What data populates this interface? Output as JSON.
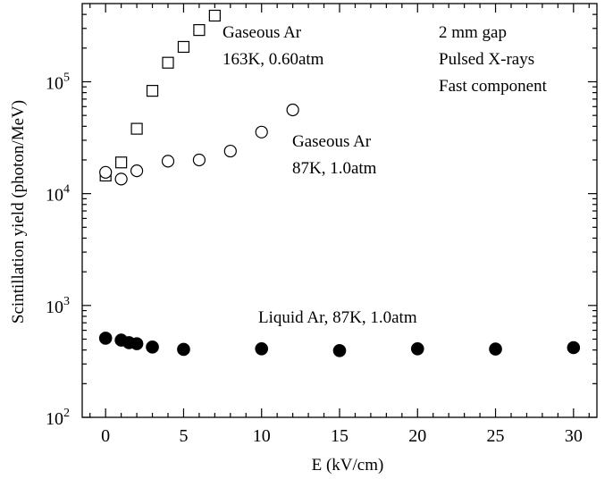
{
  "chart_data": {
    "type": "scatter",
    "xlabel": "E (kV/cm)",
    "ylabel": "Scintillation yield (photon/MeV)",
    "xlim": [
      -1.5,
      31.5
    ],
    "ylim": [
      100,
      500000
    ],
    "yscale": "log",
    "grid": false,
    "x_ticks": [
      0,
      5,
      10,
      15,
      20,
      25,
      30
    ],
    "x_tick_labels": [
      "0",
      "5",
      "10",
      "15",
      "20",
      "25",
      "30"
    ],
    "y_ticks": [
      100,
      1000,
      10000,
      100000
    ],
    "y_tick_labels": [
      {
        "base": "10",
        "exp": "2"
      },
      {
        "base": "10",
        "exp": "3"
      },
      {
        "base": "10",
        "exp": "4"
      },
      {
        "base": "10",
        "exp": "5"
      }
    ],
    "series": [
      {
        "marker": "open-square",
        "color": "#000000",
        "x": [
          0,
          1,
          2,
          3,
          4,
          5,
          6,
          7
        ],
        "y": [
          14500,
          19000,
          38000,
          83000,
          148000,
          205000,
          290000,
          390000
        ]
      },
      {
        "marker": "open-circle",
        "color": "#000000",
        "x": [
          0,
          1,
          2,
          4,
          6,
          8,
          10,
          12
        ],
        "y": [
          15500,
          13500,
          16000,
          19500,
          20000,
          24000,
          35500,
          56000
        ]
      },
      {
        "marker": "filled-circle",
        "color": "#000000",
        "x": [
          0,
          1,
          1.5,
          2,
          3,
          5,
          10,
          15,
          20,
          25,
          30
        ],
        "y": [
          510,
          490,
          465,
          455,
          425,
          405,
          410,
          395,
          410,
          408,
          420
        ]
      }
    ],
    "annotations": [
      {
        "id": "gas163",
        "lines": [
          "Gaseous Ar",
          "163K, 0.60atm"
        ]
      },
      {
        "id": "gas87",
        "lines": [
          "Gaseous Ar",
          "87K, 1.0atm"
        ]
      },
      {
        "id": "liquid",
        "lines": [
          "Liquid Ar, 87K, 1.0atm"
        ]
      },
      {
        "id": "conditions",
        "lines": [
          "2 mm gap",
          "Pulsed X-rays",
          "Fast component"
        ]
      }
    ]
  }
}
